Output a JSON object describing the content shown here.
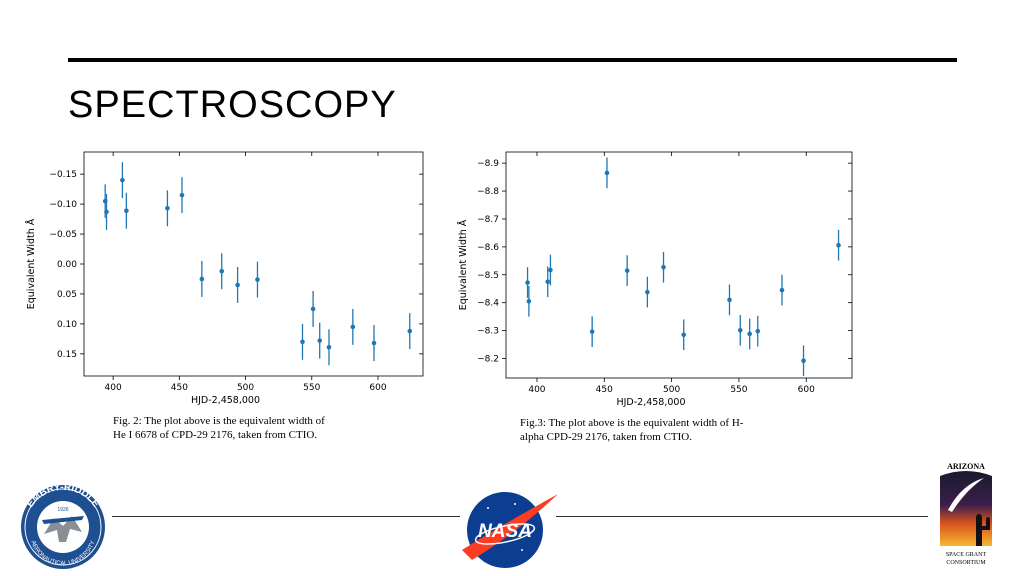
{
  "slide": {
    "title": "SPECTROSCOPY"
  },
  "captions": {
    "fig2": "Fig. 2: The plot above is the equivalent width of He I 6678 of CPD-29 2176, taken from CTIO.",
    "fig3": "Fig.3: The plot above is the equivalent width of H-alpha CPD-29 2176, taken from CTIO."
  },
  "logos": {
    "embry_riddle": {
      "top_text": "EMBRY-RIDDLE",
      "bottom_text": "AERONAUTICAL UNIVERSITY",
      "year": "1926"
    },
    "nasa": {
      "text": "NASA"
    },
    "arizona": {
      "top_text": "ARIZONA",
      "bottom_line1": "SPACE GRANT",
      "bottom_line2": "CONSORTIUM"
    }
  },
  "colors": {
    "marker": "#1f77b4",
    "rule": "#000000"
  },
  "chart_data": [
    {
      "type": "scatter",
      "title": "",
      "xlabel": "HJD-2,458,000",
      "ylabel": "Equivalent Width Å",
      "xlim": [
        378,
        634
      ],
      "ylim": [
        0.187,
        -0.187
      ],
      "y_inverted": true,
      "xticks": [
        400,
        450,
        500,
        550,
        600
      ],
      "xtick_labels": [
        "400",
        "450",
        "500",
        "550",
        "600"
      ],
      "yticks": [
        -0.15,
        -0.1,
        -0.05,
        0.0,
        0.05,
        0.1,
        0.15
      ],
      "ytick_labels": [
        "−0.15",
        "−0.10",
        "−0.05",
        "0.00",
        "0.05",
        "0.10",
        "0.15"
      ],
      "error_bars": true,
      "points": [
        {
          "x": 394,
          "y": -0.105,
          "err": 0.028
        },
        {
          "x": 395,
          "y": -0.087,
          "err": 0.03
        },
        {
          "x": 407,
          "y": -0.14,
          "err": 0.03
        },
        {
          "x": 410,
          "y": -0.089,
          "err": 0.03
        },
        {
          "x": 441,
          "y": -0.093,
          "err": 0.03
        },
        {
          "x": 452,
          "y": -0.115,
          "err": 0.03
        },
        {
          "x": 467,
          "y": 0.025,
          "err": 0.03
        },
        {
          "x": 482,
          "y": 0.012,
          "err": 0.03
        },
        {
          "x": 494,
          "y": 0.035,
          "err": 0.03
        },
        {
          "x": 509,
          "y": 0.026,
          "err": 0.03
        },
        {
          "x": 543,
          "y": 0.13,
          "err": 0.03
        },
        {
          "x": 551,
          "y": 0.075,
          "err": 0.03
        },
        {
          "x": 556,
          "y": 0.128,
          "err": 0.03
        },
        {
          "x": 563,
          "y": 0.139,
          "err": 0.03
        },
        {
          "x": 581,
          "y": 0.105,
          "err": 0.03
        },
        {
          "x": 597,
          "y": 0.132,
          "err": 0.03
        },
        {
          "x": 624,
          "y": 0.112,
          "err": 0.03
        }
      ]
    },
    {
      "type": "scatter",
      "title": "",
      "xlabel": "HJD-2,458,000",
      "ylabel": "Equivalent Width Å",
      "xlim": [
        377,
        634
      ],
      "ylim": [
        -8.13,
        -8.94
      ],
      "y_inverted": true,
      "xticks": [
        400,
        450,
        500,
        550,
        600
      ],
      "xtick_labels": [
        "400",
        "450",
        "500",
        "550",
        "600"
      ],
      "yticks": [
        -8.9,
        -8.8,
        -8.7,
        -8.6,
        -8.5,
        -8.4,
        -8.3,
        -8.2
      ],
      "ytick_labels": [
        "−8.9",
        "−8.8",
        "−8.7",
        "−8.6",
        "−8.5",
        "−8.4",
        "−8.3",
        "−8.2"
      ],
      "error_bars": true,
      "points": [
        {
          "x": 393,
          "y": -8.472,
          "err": 0.055
        },
        {
          "x": 394,
          "y": -8.405,
          "err": 0.055
        },
        {
          "x": 408,
          "y": -8.475,
          "err": 0.055
        },
        {
          "x": 410,
          "y": -8.517,
          "err": 0.055
        },
        {
          "x": 441,
          "y": -8.296,
          "err": 0.055
        },
        {
          "x": 452,
          "y": -8.865,
          "err": 0.055
        },
        {
          "x": 467,
          "y": -8.515,
          "err": 0.055
        },
        {
          "x": 482,
          "y": -8.438,
          "err": 0.055
        },
        {
          "x": 494,
          "y": -8.527,
          "err": 0.055
        },
        {
          "x": 509,
          "y": -8.285,
          "err": 0.055
        },
        {
          "x": 543,
          "y": -8.41,
          "err": 0.055
        },
        {
          "x": 551,
          "y": -8.301,
          "err": 0.055
        },
        {
          "x": 558,
          "y": -8.288,
          "err": 0.055
        },
        {
          "x": 564,
          "y": -8.298,
          "err": 0.055
        },
        {
          "x": 582,
          "y": -8.445,
          "err": 0.055
        },
        {
          "x": 598,
          "y": -8.192,
          "err": 0.055
        },
        {
          "x": 624,
          "y": -8.606,
          "err": 0.055
        }
      ]
    }
  ]
}
